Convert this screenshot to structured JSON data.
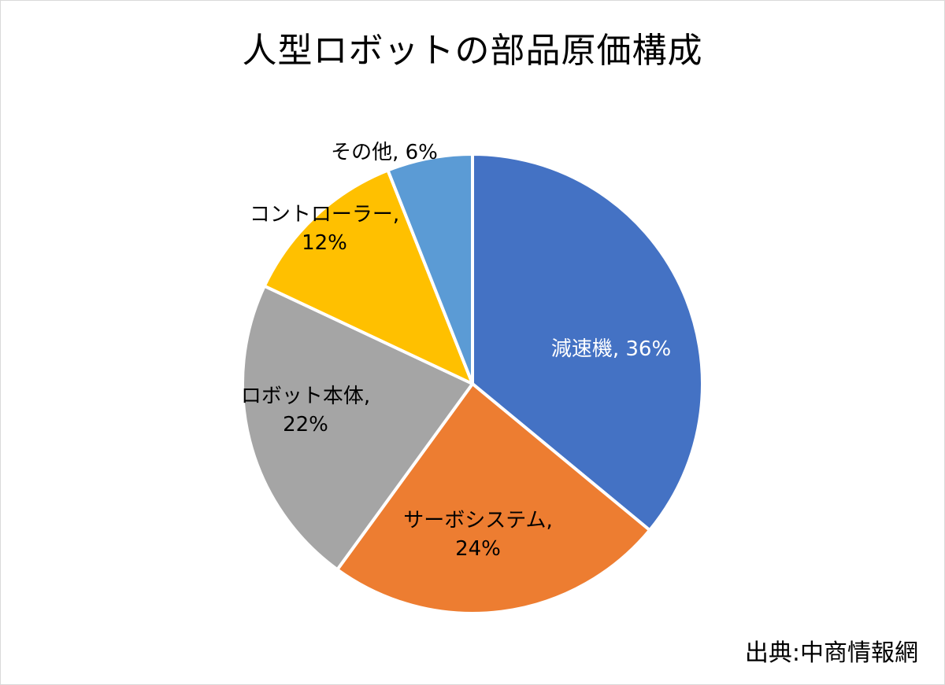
{
  "chart_data": {
    "type": "pie",
    "title": "人型ロボットの部品原価構成",
    "source": "出典:中商情報網",
    "slices": [
      {
        "name": "減速機",
        "value": 36,
        "percent_label": "36%",
        "color": "#4472C4",
        "label_color": "#ffffff",
        "label_lines": [
          "減速機, 36%"
        ]
      },
      {
        "name": "サーボシステム",
        "value": 24,
        "percent_label": "24%",
        "color": "#ED7D31",
        "label_color": "#000000",
        "label_lines": [
          "サーボシステム,",
          "24%"
        ]
      },
      {
        "name": "ロボット本体",
        "value": 22,
        "percent_label": "22%",
        "color": "#A5A5A5",
        "label_color": "#000000",
        "label_lines": [
          "ロボット本体,",
          "22%"
        ]
      },
      {
        "name": "コントローラー",
        "value": 12,
        "percent_label": "12%",
        "color": "#FFC000",
        "label_color": "#000000",
        "label_lines": [
          "コントローラー,",
          "12%"
        ]
      },
      {
        "name": "その他",
        "value": 6,
        "percent_label": "6%",
        "color": "#5B9BD5",
        "label_color": "#000000",
        "label_lines": [
          "その他, 6%"
        ]
      }
    ]
  }
}
